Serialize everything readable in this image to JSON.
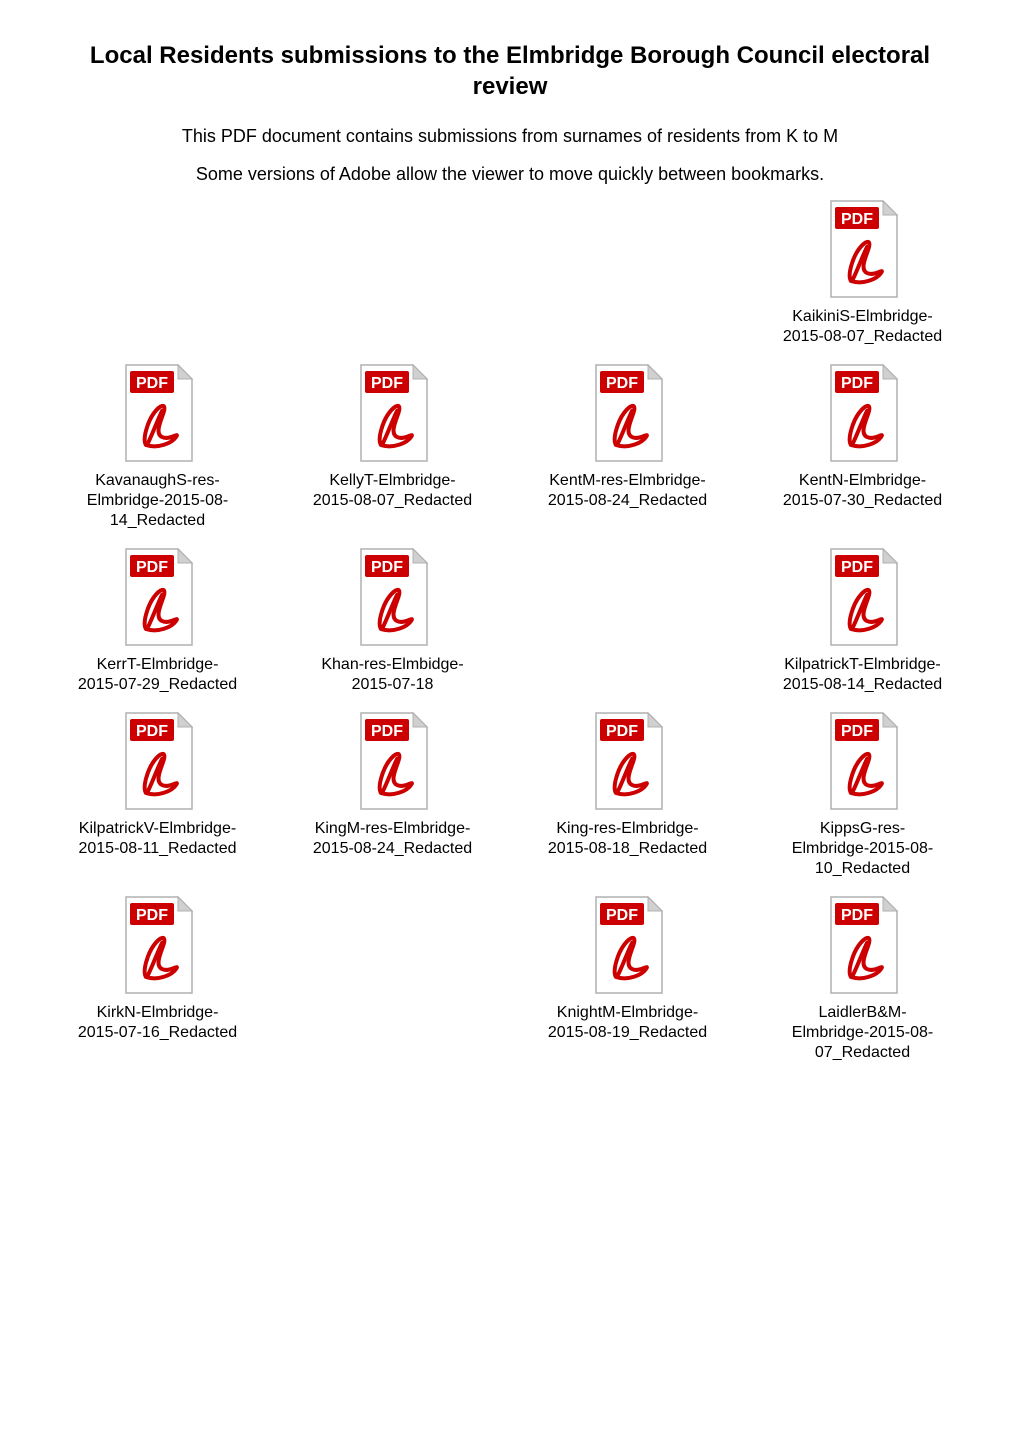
{
  "header": {
    "title": "Local Residents submissions to the Elmbridge Borough Council electoral review",
    "subtitle": "This PDF document contains submissions from surnames of residents from K to M",
    "note": "Some versions of Adobe allow the viewer to move quickly between bookmarks."
  },
  "icon": {
    "pdf_label": "PDF",
    "border_color": "#b0b0b0",
    "header_bg": "#ffffff",
    "label_bg": "#cc0000",
    "label_text_color": "#ffffff",
    "swoosh_color": "#cc0000",
    "fold_color": "#d0d0d0"
  },
  "grid": {
    "rows": [
      [
        null,
        null,
        null,
        {
          "label": "KaikiniS-Elmbridge-2015-08-07_Redacted"
        }
      ],
      [
        {
          "label": "KavanaughS-res-Elmbridge-2015-08-14_Redacted"
        },
        {
          "label": "KellyT-Elmbridge-2015-08-07_Redacted"
        },
        {
          "label": "KentM-res-Elmbridge-2015-08-24_Redacted"
        },
        {
          "label": "KentN-Elmbridge-2015-07-30_Redacted"
        }
      ],
      [
        {
          "label": "KerrT-Elmbridge-2015-07-29_Redacted"
        },
        {
          "label": "Khan-res-Elmbidge-2015-07-18"
        },
        null,
        {
          "label": "KilpatrickT-Elmbridge-2015-08-14_Redacted"
        }
      ],
      [
        {
          "label": "KilpatrickV-Elmbridge-2015-08-11_Redacted"
        },
        {
          "label": "KingM-res-Elmbridge-2015-08-24_Redacted"
        },
        {
          "label": "King-res-Elmbridge-2015-08-18_Redacted"
        },
        {
          "label": "KippsG-res-Elmbridge-2015-08-10_Redacted"
        }
      ],
      [
        {
          "label": "KirkN-Elmbridge-2015-07-16_Redacted"
        },
        null,
        {
          "label": "KnightM-Elmbridge-2015-08-19_Redacted"
        },
        {
          "label": "LaidlerB&M-Elmbridge-2015-08-07_Redacted"
        }
      ]
    ]
  }
}
